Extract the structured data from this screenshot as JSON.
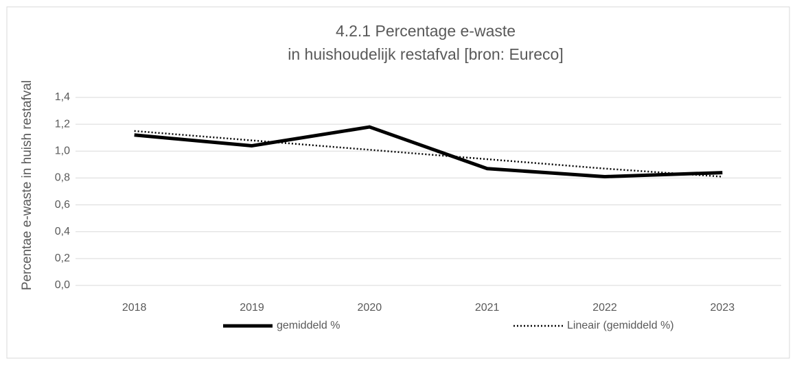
{
  "chart_data": {
    "type": "line",
    "title": [
      "4.2.1 Percentage e-waste",
      "in huishoudelijk restafval [bron: Eureco]"
    ],
    "ylabel": "Percentae e-waste in huish restafval",
    "categories": [
      "2018",
      "2019",
      "2020",
      "2021",
      "2022",
      "2023"
    ],
    "series": [
      {
        "name": "gemiddeld %",
        "color": "#000000",
        "dash": "solid",
        "values": [
          1.12,
          1.04,
          1.18,
          0.87,
          0.81,
          0.84
        ]
      },
      {
        "name": "Lineair (gemiddeld %)",
        "color": "#000000",
        "dash": "dotted",
        "values": [
          1.15,
          1.08,
          1.01,
          0.94,
          0.87,
          0.81
        ]
      }
    ],
    "ylim": [
      0,
      1.4
    ],
    "yticks": [
      {
        "value": 0,
        "label": "0,0"
      },
      {
        "value": 0.2,
        "label": "0,2"
      },
      {
        "value": 0.4,
        "label": "0,4"
      },
      {
        "value": 0.6,
        "label": "0,6"
      },
      {
        "value": 0.8,
        "label": "0,8"
      },
      {
        "value": 1.0,
        "label": "1,0"
      },
      {
        "value": 1.2,
        "label": "1,2"
      },
      {
        "value": 1.4,
        "label": "1,4"
      }
    ],
    "grid": true,
    "legend": "bottom"
  }
}
